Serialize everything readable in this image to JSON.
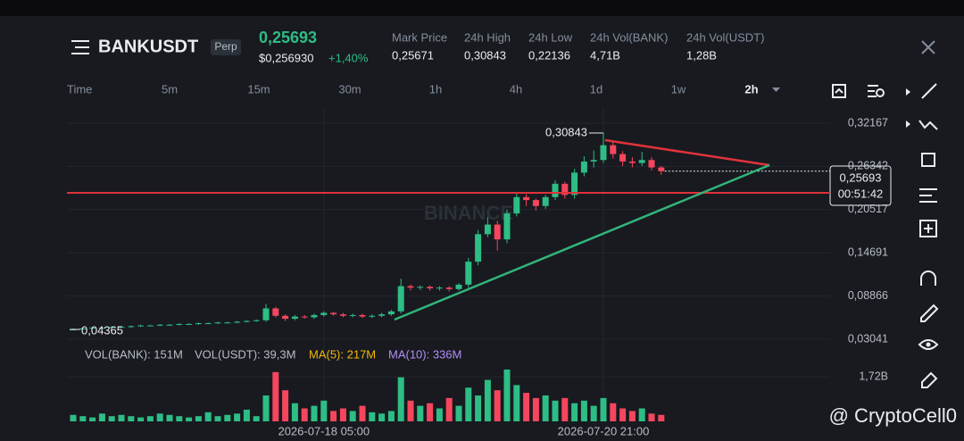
{
  "header": {
    "symbol": "BANKUSDT",
    "tag": "Perp",
    "last_price": "0,25693",
    "usd_price": "$0,256930",
    "change": "+1,40%"
  },
  "stats": [
    {
      "label": "Mark Price",
      "value": "0,25671"
    },
    {
      "label": "24h High",
      "value": "0,30843"
    },
    {
      "label": "24h Low",
      "value": "0,22136"
    },
    {
      "label": "24h Vol(BANK)",
      "value": "4,71B"
    },
    {
      "label": "24h Vol(USDT)",
      "value": "1,28B"
    }
  ],
  "timeframes": [
    "Time",
    "5m",
    "15m",
    "30m",
    "1h",
    "4h",
    "1d",
    "1w",
    "2h"
  ],
  "chart_data": {
    "type": "candlestick",
    "watermark": "BINANCE",
    "categories": [
      null,
      null,
      null,
      null,
      null,
      null,
      null,
      null,
      null,
      null,
      null,
      null,
      null,
      null,
      null,
      null,
      null,
      null,
      null,
      null,
      null,
      null,
      null,
      null,
      null,
      null,
      "2026-07-18 05:00",
      null,
      null,
      null,
      null,
      null,
      null,
      null,
      null,
      null,
      null,
      null,
      null,
      null,
      null,
      null,
      null,
      null,
      null,
      null,
      null,
      null,
      null,
      null,
      null,
      null,
      null,
      null,
      null,
      "2026-07-20 21:00",
      null,
      null,
      null,
      null,
      null,
      null
    ],
    "open": [
      0.043,
      0.0437,
      0.045,
      0.046,
      0.046,
      0.047,
      0.047,
      0.048,
      0.049,
      0.049,
      0.05,
      0.05,
      0.051,
      0.051,
      0.052,
      0.052,
      0.053,
      0.053,
      0.054,
      0.055,
      0.056,
      0.072,
      0.062,
      0.058,
      0.061,
      0.06,
      0.063,
      0.066,
      0.064,
      0.062,
      0.063,
      0.061,
      0.062,
      0.064,
      0.068,
      0.102,
      0.1,
      0.101,
      0.099,
      0.1,
      0.098,
      0.104,
      0.135,
      0.172,
      0.185,
      0.165,
      0.2,
      0.222,
      0.218,
      0.21,
      0.222,
      0.24,
      0.225,
      0.255,
      0.27,
      0.272,
      0.292,
      0.28,
      0.27,
      0.268,
      0.272,
      0.262
    ],
    "high": [
      0.045,
      0.046,
      0.047,
      0.047,
      0.048,
      0.048,
      0.049,
      0.05,
      0.05,
      0.051,
      0.051,
      0.052,
      0.052,
      0.053,
      0.053,
      0.054,
      0.054,
      0.055,
      0.056,
      0.057,
      0.078,
      0.074,
      0.064,
      0.063,
      0.063,
      0.065,
      0.068,
      0.067,
      0.066,
      0.065,
      0.065,
      0.064,
      0.066,
      0.07,
      0.112,
      0.104,
      0.103,
      0.103,
      0.102,
      0.102,
      0.106,
      0.14,
      0.178,
      0.195,
      0.19,
      0.205,
      0.228,
      0.226,
      0.22,
      0.225,
      0.245,
      0.243,
      0.26,
      0.277,
      0.285,
      0.30843,
      0.298,
      0.284,
      0.276,
      0.283,
      0.276,
      0.264
    ],
    "low": [
      0.04365,
      0.0437,
      0.044,
      0.045,
      0.045,
      0.046,
      0.046,
      0.047,
      0.048,
      0.048,
      0.049,
      0.049,
      0.05,
      0.05,
      0.051,
      0.051,
      0.052,
      0.052,
      0.053,
      0.054,
      0.054,
      0.06,
      0.055,
      0.056,
      0.058,
      0.058,
      0.061,
      0.062,
      0.06,
      0.06,
      0.059,
      0.059,
      0.06,
      0.062,
      0.065,
      0.096,
      0.097,
      0.096,
      0.096,
      0.095,
      0.096,
      0.1,
      0.13,
      0.168,
      0.15,
      0.16,
      0.196,
      0.21,
      0.204,
      0.206,
      0.218,
      0.22,
      0.22,
      0.25,
      0.262,
      0.268,
      0.274,
      0.264,
      0.262,
      0.264,
      0.258,
      0.252
    ],
    "close": [
      0.0437,
      0.045,
      0.046,
      0.046,
      0.047,
      0.047,
      0.048,
      0.049,
      0.049,
      0.05,
      0.05,
      0.051,
      0.051,
      0.052,
      0.052,
      0.053,
      0.053,
      0.054,
      0.055,
      0.056,
      0.072,
      0.062,
      0.058,
      0.061,
      0.06,
      0.063,
      0.066,
      0.064,
      0.062,
      0.063,
      0.061,
      0.062,
      0.064,
      0.068,
      0.102,
      0.1,
      0.101,
      0.099,
      0.1,
      0.098,
      0.104,
      0.135,
      0.172,
      0.185,
      0.165,
      0.2,
      0.222,
      0.218,
      0.21,
      0.222,
      0.24,
      0.225,
      0.255,
      0.27,
      0.272,
      0.292,
      0.28,
      0.27,
      0.268,
      0.272,
      0.262,
      0.25693
    ],
    "up_color": "#2ebd85",
    "down_color": "#f6465d",
    "ylim": [
      0.0184,
      0.3433
    ],
    "yticks": [
      {
        "value": 0.32167,
        "label": "0,32167"
      },
      {
        "value": 0.26342,
        "label": "0,26342"
      },
      {
        "value": 0.20517,
        "label": "0,20517"
      },
      {
        "value": 0.14691,
        "label": "0,14691"
      },
      {
        "value": 0.08866,
        "label": "0,08866"
      },
      {
        "value": 0.03041,
        "label": "0,03041"
      }
    ],
    "high_label": "0,30843",
    "low_label": "0,04365",
    "last_label": "0,25693",
    "countdown": "00:51:42",
    "volume": {
      "legend": [
        "VOL(BANK): 151M",
        "VOL(USDT): 39,3M",
        "MA(5): 217M",
        "MA(10): 336M"
      ],
      "values": [
        0.25,
        0.2,
        0.15,
        0.3,
        0.2,
        0.25,
        0.2,
        0.15,
        0.2,
        0.3,
        0.25,
        0.2,
        0.15,
        0.2,
        0.35,
        0.2,
        0.25,
        0.3,
        0.45,
        0.2,
        1.0,
        1.9,
        1.2,
        0.7,
        0.5,
        0.6,
        0.8,
        0.4,
        0.5,
        0.4,
        0.6,
        0.35,
        0.3,
        0.4,
        1.7,
        0.8,
        0.6,
        0.7,
        0.5,
        0.9,
        0.6,
        1.3,
        1.0,
        1.6,
        1.2,
        2.0,
        1.4,
        1.1,
        0.9,
        1.0,
        0.8,
        0.9,
        0.7,
        0.8,
        0.6,
        0.9,
        0.7,
        0.5,
        0.4,
        0.5,
        0.3,
        0.25
      ],
      "ylim": [
        0,
        2.48
      ],
      "yticks": [
        {
          "value": 1.72,
          "label": "1,72B"
        }
      ]
    }
  },
  "credit": "@ CryptoCell0"
}
